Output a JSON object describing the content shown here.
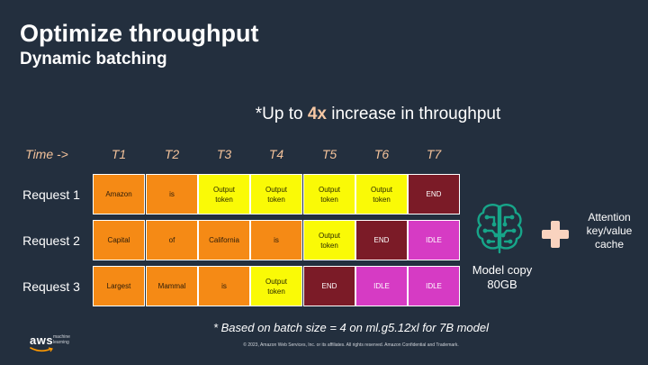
{
  "title": "Optimize throughput",
  "subtitle": "Dynamic batching",
  "headline": {
    "prefix": "*Up to ",
    "highlight": "4x",
    "suffix": " increase in throughput"
  },
  "time_header": "Time ->",
  "time_steps": [
    "T1",
    "T2",
    "T3",
    "T4",
    "T5",
    "T6",
    "T7"
  ],
  "requests": [
    {
      "label": "Request 1",
      "cells": [
        {
          "text": "Amazon",
          "kind": "prompt"
        },
        {
          "text": "is",
          "kind": "prompt"
        },
        {
          "text": "Output token",
          "kind": "output"
        },
        {
          "text": "Output token",
          "kind": "output"
        },
        {
          "text": "Output token",
          "kind": "output"
        },
        {
          "text": "Output token",
          "kind": "output"
        },
        {
          "text": "END",
          "kind": "end"
        }
      ]
    },
    {
      "label": "Request 2",
      "cells": [
        {
          "text": "Capital",
          "kind": "prompt"
        },
        {
          "text": "of",
          "kind": "prompt"
        },
        {
          "text": "California",
          "kind": "prompt"
        },
        {
          "text": "is",
          "kind": "prompt"
        },
        {
          "text": "Output token",
          "kind": "output"
        },
        {
          "text": "END",
          "kind": "end"
        },
        {
          "text": "IDLE",
          "kind": "idle"
        }
      ]
    },
    {
      "label": "Request 3",
      "cells": [
        {
          "text": "Largest",
          "kind": "prompt"
        },
        {
          "text": "Mammal",
          "kind": "prompt"
        },
        {
          "text": "is",
          "kind": "prompt"
        },
        {
          "text": "Output token",
          "kind": "output"
        },
        {
          "text": "END",
          "kind": "end"
        },
        {
          "text": "IDLE",
          "kind": "idle"
        },
        {
          "text": "IDLE",
          "kind": "idle"
        }
      ]
    }
  ],
  "model_caption": "Model copy 80GB",
  "cache_caption": "Attention key/value cache",
  "footnote": "* Based on batch size = 4 on ml.g5.12xl for 7B model",
  "logo": {
    "brand": "aws",
    "line1": "machine",
    "line2": "learning"
  },
  "copyright": "© 2023, Amazon Web Services, Inc. or its affiliates. All rights reserved. Amazon Confidential and Trademark.",
  "colors": {
    "background": "#232f3e",
    "prompt": "#f58a15",
    "output": "#fafa06",
    "end": "#7b1b27",
    "idle": "#d63bc4",
    "accent": "#f7c8a4",
    "icon": "#17a589",
    "plus": "#f9d3bf"
  },
  "icons": {
    "model": "brain-circuit-icon",
    "plus": "plus-icon"
  }
}
